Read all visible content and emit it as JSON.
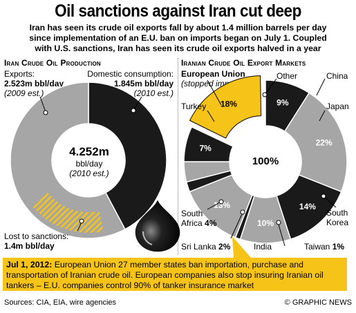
{
  "header": {
    "title": "Oil sanctions against Iran cut deep",
    "subtitle_lines": [
      "Iran has seen its crude oil exports fall by about 1.4 million barrels per day",
      "since implementation of an E.U. ban on imports began on July 1. Coupled",
      "with U.S. sanctions, Iran has seen its crude oil exports halved in a year"
    ]
  },
  "production": {
    "heading": "Iran Crude Oil Production",
    "exports_label": "Exports:",
    "exports_value": "2.523m bbl/day",
    "exports_note": "(2009 est.)",
    "domestic_label": "Domestic consumption:",
    "domestic_value": "1.845m bbl/day",
    "domestic_note": "(2010 est.)",
    "center_value": "4.252m",
    "center_unit": "bbl/day",
    "center_note": "(2010 est.)",
    "lost_label": "Lost to sanctions:",
    "lost_value": "1.4m bbl/day"
  },
  "markets": {
    "heading": "Iranian Crude Oil Export Markets",
    "eu_label": "European Union",
    "eu_note": "(stopped imports)",
    "center_value": "100%"
  },
  "chart_data": [
    {
      "type": "pie",
      "title": "Iran Crude Oil Production",
      "total": 4.252,
      "unit": "m bbl/day",
      "slices": [
        {
          "label": "Exports",
          "value": 2.523,
          "color": "#a6a6a6"
        },
        {
          "label": "Domestic consumption",
          "value": 1.845,
          "color": "#1a1a1a"
        }
      ],
      "highlight": {
        "label": "Lost to sanctions",
        "value": 1.4,
        "color": "#f6c318"
      }
    },
    {
      "type": "pie",
      "title": "Iranian Crude Oil Export Markets",
      "slices": [
        {
          "label": "Other",
          "value": 9,
          "display": "9%",
          "color": "#1a1a1a"
        },
        {
          "label": "China",
          "value": 22,
          "display": "22%",
          "color": "#a6a6a6"
        },
        {
          "label": "Japan",
          "value": 14,
          "display": "14%",
          "color": "#1a1a1a"
        },
        {
          "label": "South Korea",
          "value": 10,
          "display": "10%",
          "color": "#a6a6a6"
        },
        {
          "label": "Taiwan",
          "value": 1,
          "display": "1%",
          "color": "#1a1a1a"
        },
        {
          "label": "India",
          "value": 13,
          "display": "13%",
          "color": "#a6a6a6"
        },
        {
          "label": "Sri Lanka",
          "value": 2,
          "display": "2%",
          "color": "#1a1a1a"
        },
        {
          "label": "South Africa",
          "value": 4,
          "display": "4%",
          "color": "#a6a6a6"
        },
        {
          "label": "",
          "value": 7,
          "display": "7%",
          "color": "#1a1a1a"
        },
        {
          "label": "Turkey",
          "value": 18,
          "display": "18%",
          "color": "#f6c318"
        }
      ]
    }
  ],
  "timeline": {
    "date": "Jul 1, 2012:",
    "text": "European Union 27 member states ban importation, purchase and transportation of Iranian crude oil. European companies also stop insuring Iranian oil tankers – E.U. companies control 90% of tanker insurance market"
  },
  "footer": {
    "sources": "Sources: CIA, EIA, wire agencies",
    "credit": "© GRAPHIC NEWS"
  }
}
